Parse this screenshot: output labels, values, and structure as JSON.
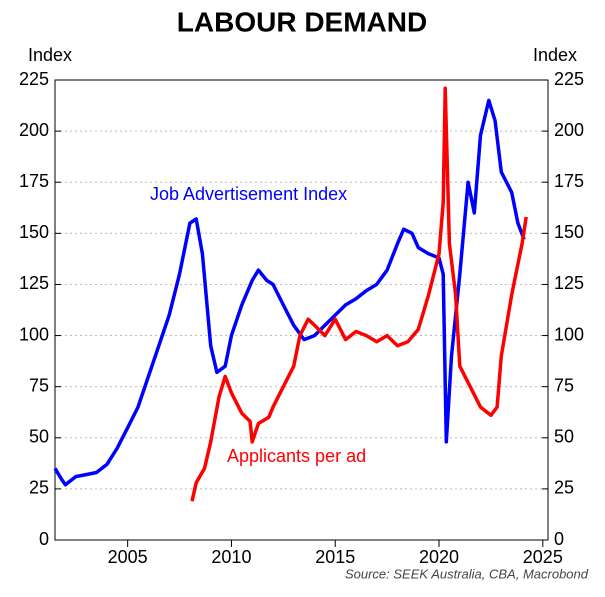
{
  "chart_data": {
    "type": "line",
    "title": "LABOUR DEMAND",
    "y_label": "Index",
    "y2_label": "Index",
    "source": "Source: SEEK Australia, CBA, Macrobond",
    "xlim": [
      2001.5,
      2025.25
    ],
    "xticks": [
      2005,
      2010,
      2015,
      2020,
      2025
    ],
    "ylim": [
      0,
      225
    ],
    "yticks": [
      0,
      25,
      50,
      75,
      100,
      125,
      150,
      175,
      200,
      225
    ],
    "y2lim": [
      0,
      225
    ],
    "y2ticks": [
      0,
      25,
      50,
      75,
      100,
      125,
      150,
      175,
      200,
      225
    ],
    "grid": true,
    "series": [
      {
        "name": "Job Advertisement Index",
        "color": "#0000ff",
        "x": [
          2001.5,
          2001.8,
          2002,
          2002.5,
          2003,
          2003.5,
          2004,
          2004.5,
          2005,
          2005.5,
          2006,
          2006.5,
          2007,
          2007.5,
          2008,
          2008.3,
          2008.6,
          2009,
          2009.3,
          2009.7,
          2010,
          2010.5,
          2011,
          2011.3,
          2011.7,
          2012,
          2012.5,
          2013,
          2013.5,
          2014,
          2014.5,
          2015,
          2015.5,
          2016,
          2016.5,
          2017,
          2017.5,
          2018,
          2018.3,
          2018.7,
          2019,
          2019.5,
          2020,
          2020.2,
          2020.35,
          2020.6,
          2021,
          2021.4,
          2021.7,
          2022,
          2022.4,
          2022.7,
          2023,
          2023.5,
          2023.8,
          2024.1
        ],
        "values": [
          35,
          30,
          27,
          31,
          32,
          33,
          37,
          45,
          55,
          65,
          80,
          95,
          110,
          130,
          155,
          157,
          140,
          95,
          82,
          85,
          100,
          115,
          127,
          132,
          127,
          125,
          115,
          105,
          98,
          100,
          105,
          110,
          115,
          118,
          122,
          125,
          132,
          145,
          152,
          150,
          143,
          140,
          138,
          130,
          48,
          90,
          130,
          175,
          160,
          198,
          215,
          205,
          180,
          170,
          155,
          147
        ]
      },
      {
        "name": "Applicants per ad",
        "color": "#ff0000",
        "x": [
          2008.1,
          2008.3,
          2008.7,
          2009,
          2009.4,
          2009.7,
          2010,
          2010.5,
          2010.9,
          2011,
          2011.3,
          2011.8,
          2012,
          2012.5,
          2013,
          2013.3,
          2013.7,
          2014,
          2014.5,
          2015,
          2015.5,
          2016,
          2016.5,
          2017,
          2017.5,
          2018,
          2018.5,
          2019,
          2019.5,
          2020,
          2020.2,
          2020.3,
          2020.5,
          2020.8,
          2021,
          2021.5,
          2022,
          2022.5,
          2022.8,
          2023,
          2023.5,
          2024,
          2024.2
        ],
        "values": [
          19,
          28,
          35,
          48,
          70,
          80,
          72,
          62,
          58,
          48,
          57,
          60,
          65,
          75,
          85,
          100,
          108,
          105,
          100,
          108,
          98,
          102,
          100,
          97,
          100,
          95,
          97,
          103,
          120,
          140,
          165,
          221,
          145,
          120,
          85,
          75,
          65,
          61,
          65,
          90,
          120,
          145,
          158
        ]
      }
    ]
  }
}
